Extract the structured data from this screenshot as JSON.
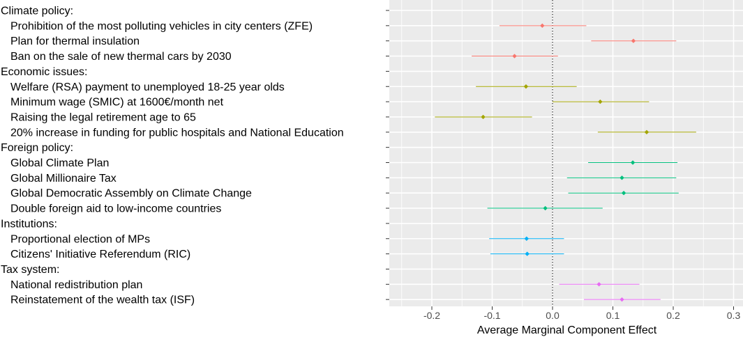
{
  "chart_data": {
    "type": "scatter",
    "xlabel": "Average Marginal Component Effect",
    "ylabel": "",
    "title": "",
    "xlim": [
      -0.27,
      0.31
    ],
    "x_ticks": [
      "-0.2",
      "-0.1",
      "0.0",
      "0.1",
      "0.2",
      "0.3"
    ],
    "x_tick_values": [
      -0.2,
      -0.1,
      0.0,
      0.1,
      0.2,
      0.3
    ],
    "reference_line": 0,
    "grid": true,
    "legend": "none",
    "groups": [
      {
        "name": "Climate policy:",
        "color": "#F8766D",
        "items": [
          {
            "label": "Prohibition of the most polluting vehicles in city centers (ZFE)",
            "estimate": -0.017,
            "ci_low": -0.088,
            "ci_high": 0.056
          },
          {
            "label": "Plan for thermal insulation",
            "estimate": 0.134,
            "ci_low": 0.064,
            "ci_high": 0.205
          },
          {
            "label": "Ban on the sale of new thermal cars by 2030",
            "estimate": -0.063,
            "ci_low": -0.134,
            "ci_high": 0.009
          }
        ]
      },
      {
        "name": "Economic issues:",
        "color": "#A3A500",
        "items": [
          {
            "label": "Welfare (RSA) payment to unemployed 18-25 year olds",
            "estimate": -0.044,
            "ci_low": -0.127,
            "ci_high": 0.04
          },
          {
            "label": "Minimum wage (SMIC) at 1600€/month net",
            "estimate": 0.079,
            "ci_low": 0.0,
            "ci_high": 0.16
          },
          {
            "label": "Raising the legal retirement age to 65",
            "estimate": -0.115,
            "ci_low": -0.195,
            "ci_high": -0.034
          },
          {
            "label": "20% increase in funding for public hospitals and National Education",
            "estimate": 0.156,
            "ci_low": 0.075,
            "ci_high": 0.238
          }
        ]
      },
      {
        "name": "Foreign policy:",
        "color": "#00BF7D",
        "items": [
          {
            "label": "Global Climate Plan",
            "estimate": 0.133,
            "ci_low": 0.059,
            "ci_high": 0.207
          },
          {
            "label": "Global Millionaire Tax",
            "estimate": 0.115,
            "ci_low": 0.024,
            "ci_high": 0.205
          },
          {
            "label": "Global Democratic Assembly on Climate Change",
            "estimate": 0.118,
            "ci_low": 0.026,
            "ci_high": 0.209
          },
          {
            "label": "Double foreign aid to low-income countries",
            "estimate": -0.012,
            "ci_low": -0.108,
            "ci_high": 0.083
          }
        ]
      },
      {
        "name": "Institutions:",
        "color": "#00B0F6",
        "items": [
          {
            "label": "Proportional election of MPs",
            "estimate": -0.043,
            "ci_low": -0.105,
            "ci_high": 0.019
          },
          {
            "label": "Citizens' Initiative Referendum (RIC)",
            "estimate": -0.042,
            "ci_low": -0.103,
            "ci_high": 0.019
          }
        ]
      },
      {
        "name": "Tax system:",
        "color": "#E76BF3",
        "items": [
          {
            "label": "National redistribution plan",
            "estimate": 0.077,
            "ci_low": 0.011,
            "ci_high": 0.144
          },
          {
            "label": "Reinstatement of the wealth tax (ISF)",
            "estimate": 0.115,
            "ci_low": 0.052,
            "ci_high": 0.179
          }
        ]
      }
    ]
  }
}
